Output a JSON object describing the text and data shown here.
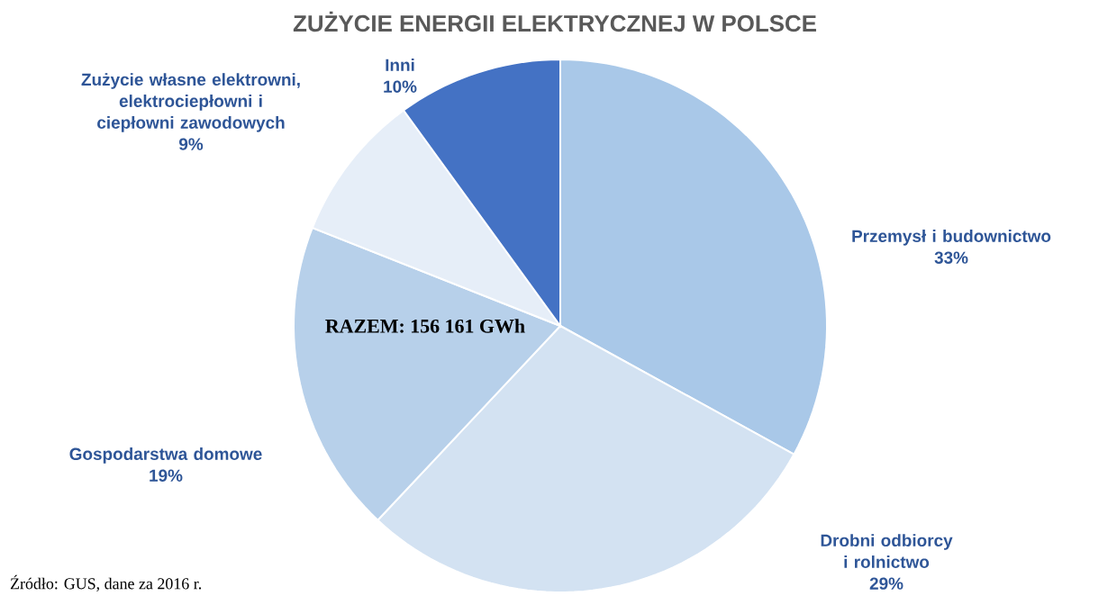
{
  "chart_data": {
    "type": "pie",
    "title": "ZUŻYCIE ENERGII ELEKTRYCZNEJ W POLSCE",
    "categories": [
      "Przemysł i budownictwo",
      "Drobni odbiorcy i rolnictwo",
      "Gospodarstwa domowe",
      "Zużycie własne elektrowni, elektrociepłowni i ciepłowni zawodowych",
      "Inni"
    ],
    "values": [
      33,
      29,
      19,
      9,
      10
    ],
    "value_labels": [
      "33%",
      "29%",
      "19%",
      "9%",
      "10%"
    ],
    "colors": [
      "#a9c8e8",
      "#d3e2f2",
      "#b7d0ea",
      "#e6eef8",
      "#4472c4"
    ],
    "annotations": [
      "RAZEM: 156 161 GWh",
      "Źródło: GUS, dane za 2016 r."
    ]
  }
}
